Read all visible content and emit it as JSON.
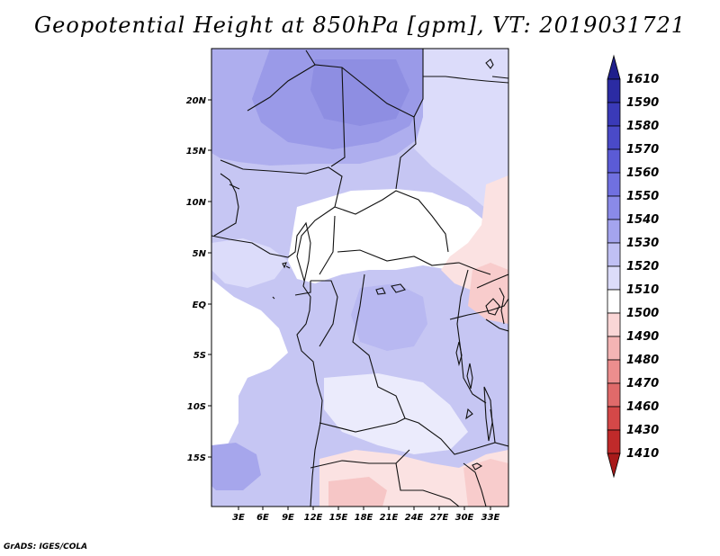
{
  "title": "Geopotential Height at 850hPa [gpm], VT: 2019031721",
  "credit": "GrADS: IGES/COLA",
  "map": {
    "lat_labels": [
      "20N",
      "15N",
      "10N",
      "5N",
      "EQ",
      "5S",
      "10S",
      "15S"
    ],
    "lon_labels": [
      "3E",
      "6E",
      "9E",
      "12E",
      "15E",
      "18E",
      "21E",
      "24E",
      "27E",
      "30E",
      "33E"
    ]
  },
  "colorbar": {
    "levels": [
      "1610",
      "1590",
      "1580",
      "1570",
      "1560",
      "1550",
      "1540",
      "1530",
      "1520",
      "1510",
      "1500",
      "1490",
      "1480",
      "1470",
      "1460",
      "1430",
      "1410"
    ],
    "colors": [
      "#1f1f8c",
      "#2b2ba3",
      "#3a3ab8",
      "#4a4ac8",
      "#5b5bd6",
      "#7070e0",
      "#8a8ae8",
      "#a4a4ee",
      "#c0c0f4",
      "#dcdcfa",
      "#ffffff",
      "#fad6d6",
      "#f4b4b4",
      "#ec8e8e",
      "#e06a6a",
      "#d44848",
      "#c02a2a",
      "#a81a1a"
    ]
  }
}
